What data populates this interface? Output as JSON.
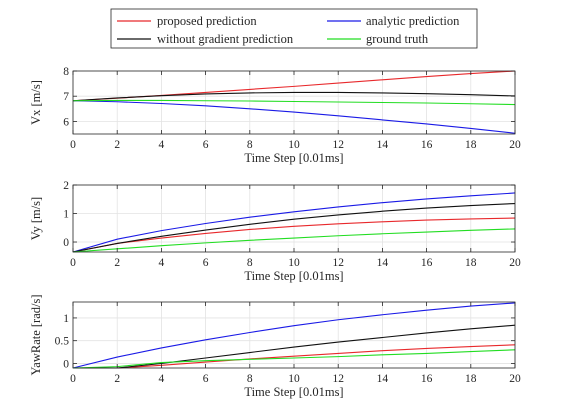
{
  "legend": {
    "entries": [
      {
        "label": "proposed prediction",
        "color": "#e8292c"
      },
      {
        "label": "analytic prediction",
        "color": "#1a1ae6"
      },
      {
        "label": "without gradient prediction",
        "color": "#111111"
      },
      {
        "label": "ground truth",
        "color": "#22dd22"
      }
    ],
    "placement": "top-center, outside plots, 2 columns"
  },
  "chart_data": [
    {
      "type": "line",
      "title": "",
      "xlabel": "Time Step [0.01ms]",
      "ylabel": "Vx [m/s]",
      "xlim": [
        0,
        20
      ],
      "ylim": [
        5.5,
        8
      ],
      "xticks": [
        0,
        2,
        4,
        6,
        8,
        10,
        12,
        14,
        16,
        18,
        20
      ],
      "yticks": [
        6,
        7,
        8
      ],
      "grid": true,
      "x": [
        0,
        2,
        4,
        6,
        8,
        10,
        12,
        14,
        16,
        18,
        20
      ],
      "series": [
        {
          "name": "proposed prediction",
          "color": "#e8292c",
          "values": [
            6.82,
            6.92,
            7.03,
            7.15,
            7.27,
            7.39,
            7.52,
            7.65,
            7.78,
            7.9,
            8.0
          ]
        },
        {
          "name": "analytic prediction",
          "color": "#1a1ae6",
          "values": [
            6.82,
            6.78,
            6.71,
            6.62,
            6.5,
            6.37,
            6.22,
            6.06,
            5.9,
            5.72,
            5.53
          ]
        },
        {
          "name": "without gradient prediction",
          "color": "#111111",
          "values": [
            6.82,
            6.93,
            7.02,
            7.09,
            7.13,
            7.15,
            7.15,
            7.13,
            7.1,
            7.06,
            7.01
          ]
        },
        {
          "name": "ground truth",
          "color": "#22dd22",
          "values": [
            6.82,
            6.83,
            6.83,
            6.82,
            6.81,
            6.79,
            6.77,
            6.75,
            6.73,
            6.7,
            6.67
          ]
        }
      ]
    },
    {
      "type": "line",
      "title": "",
      "xlabel": "Time Step [0.01ms]",
      "ylabel": "Vy [m/s]",
      "xlim": [
        0,
        20
      ],
      "ylim": [
        -0.35,
        2
      ],
      "xticks": [
        0,
        2,
        4,
        6,
        8,
        10,
        12,
        14,
        16,
        18,
        20
      ],
      "yticks": [
        0,
        1,
        2
      ],
      "grid": true,
      "x": [
        0,
        2,
        4,
        6,
        8,
        10,
        12,
        14,
        16,
        18,
        20
      ],
      "series": [
        {
          "name": "proposed prediction",
          "color": "#e8292c",
          "values": [
            -0.35,
            -0.05,
            0.14,
            0.3,
            0.44,
            0.55,
            0.64,
            0.71,
            0.77,
            0.81,
            0.84
          ]
        },
        {
          "name": "analytic prediction",
          "color": "#1a1ae6",
          "values": [
            -0.35,
            0.1,
            0.4,
            0.65,
            0.87,
            1.06,
            1.23,
            1.38,
            1.51,
            1.62,
            1.72
          ]
        },
        {
          "name": "without gradient prediction",
          "color": "#111111",
          "values": [
            -0.35,
            -0.05,
            0.2,
            0.42,
            0.62,
            0.8,
            0.95,
            1.08,
            1.19,
            1.28,
            1.35
          ]
        },
        {
          "name": "ground truth",
          "color": "#22dd22",
          "values": [
            -0.35,
            -0.24,
            -0.13,
            -0.03,
            0.06,
            0.14,
            0.22,
            0.29,
            0.35,
            0.41,
            0.46
          ]
        }
      ]
    },
    {
      "type": "line",
      "title": "",
      "xlabel": "Time Step [0.01ms]",
      "ylabel": "YawRate [rad/s]",
      "xlim": [
        0,
        20
      ],
      "ylim": [
        -0.1,
        1.35
      ],
      "xticks": [
        0,
        2,
        4,
        6,
        8,
        10,
        12,
        14,
        16,
        18,
        20
      ],
      "yticks": [
        0,
        0.5,
        1
      ],
      "grid": true,
      "x": [
        0,
        2,
        4,
        6,
        8,
        10,
        12,
        14,
        16,
        18,
        20
      ],
      "series": [
        {
          "name": "proposed prediction",
          "color": "#e8292c",
          "values": [
            -0.1,
            -0.1,
            -0.04,
            0.03,
            0.1,
            0.16,
            0.22,
            0.28,
            0.33,
            0.37,
            0.41
          ]
        },
        {
          "name": "analytic prediction",
          "color": "#1a1ae6",
          "values": [
            -0.1,
            0.14,
            0.34,
            0.52,
            0.68,
            0.83,
            0.96,
            1.07,
            1.17,
            1.26,
            1.33
          ]
        },
        {
          "name": "without gradient prediction",
          "color": "#111111",
          "values": [
            -0.1,
            -0.1,
            0.0,
            0.12,
            0.24,
            0.36,
            0.47,
            0.57,
            0.67,
            0.76,
            0.84
          ]
        },
        {
          "name": "ground truth",
          "color": "#22dd22",
          "values": [
            -0.1,
            -0.07,
            0.02,
            0.06,
            0.09,
            0.12,
            0.15,
            0.19,
            0.22,
            0.26,
            0.3
          ]
        }
      ]
    }
  ]
}
